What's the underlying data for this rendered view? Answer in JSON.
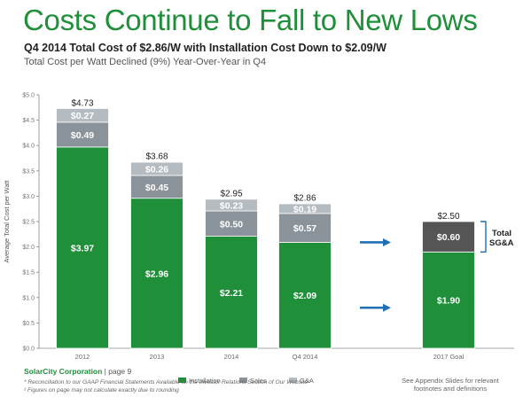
{
  "title": "Costs Continue to Fall to New Lows",
  "subtitle": "Q4 2014 Total Cost of $2.86/W with Installation Cost Down to $2.09/W",
  "subsubtitle": "Total Cost per Watt Declined (9%) Year-Over-Year in Q4",
  "colors": {
    "installation": "#1f8f3a",
    "sales": "#8a939a",
    "ga": "#b4bbc1",
    "sgna": "#555555",
    "arrow": "#1e6fb5",
    "title": "#1f8f3a"
  },
  "bracket_label_line1": "Total",
  "bracket_label_line2": "SG&A",
  "footer": {
    "brand": "SolarCity Corporation",
    "page": " | page 9",
    "note1": "* Reconciliation to our GAAP Financial Statements Available on the Investor Relations Section of Our Website²",
    "note2": "² Figures on page may not calculate exactly due to rounding",
    "appendix": "See Appendix Slides for relevant footnotes and definitions"
  },
  "chart_data": {
    "type": "bar",
    "stacked": true,
    "categories": [
      "2012",
      "2013",
      "2014",
      "Q4 2014",
      "2017 Goal"
    ],
    "series": [
      {
        "name": "Installation",
        "values": [
          3.97,
          2.96,
          2.21,
          2.09,
          1.9
        ],
        "labels": [
          "$3.97",
          "$2.96",
          "$2.21",
          "$2.09",
          "$1.90"
        ]
      },
      {
        "name": "Sales",
        "values": [
          0.49,
          0.45,
          0.5,
          0.57,
          null
        ],
        "labels": [
          "$0.49",
          "$0.45",
          "$0.50",
          "$0.57",
          ""
        ]
      },
      {
        "name": "G&A",
        "values": [
          0.27,
          0.26,
          0.23,
          0.19,
          null
        ],
        "labels": [
          "$0.27",
          "$0.26",
          "$0.23",
          "$0.19",
          ""
        ]
      },
      {
        "name": "",
        "values": [
          null,
          null,
          null,
          null,
          0.6
        ],
        "labels": [
          "",
          "",
          "",
          "",
          "$0.60"
        ]
      }
    ],
    "totals": [
      4.73,
      3.68,
      2.95,
      2.86,
      2.5
    ],
    "total_labels": [
      "$4.73",
      "$3.68",
      "$2.95",
      "$2.86",
      "$2.50"
    ],
    "ylabel": "Average Total Cost per Watt",
    "ylim": [
      0,
      5
    ],
    "yticks": [
      0,
      0.5,
      1,
      1.5,
      2,
      2.5,
      3,
      3.5,
      4,
      4.5,
      5
    ],
    "ytick_labels": [
      "$0.0",
      "$0.5",
      "$1.0",
      "$1.5",
      "$2.0",
      "$2.5",
      "$3.0",
      "$3.5",
      "$4.0",
      "$4.5",
      "$5.0"
    ],
    "legend": [
      "Installation",
      "Sales",
      "G&A"
    ],
    "legend_position": "bottom",
    "grid": false
  }
}
